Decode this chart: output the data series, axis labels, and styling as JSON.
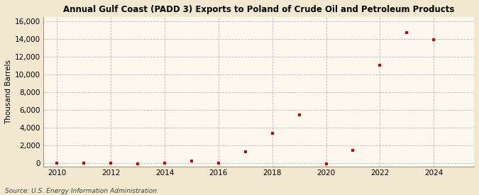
{
  "title": "Annual Gulf Coast (PADD 3) Exports to Poland of Crude Oil and Petroleum Products",
  "ylabel": "Thousand Barrels",
  "source": "Source: U.S. Energy Information Administration",
  "background_color": "#f2e8d0",
  "plot_background_color": "#fdf8ee",
  "marker_color": "#cc0000",
  "xlim": [
    2009.5,
    2025.5
  ],
  "ylim": [
    -400,
    16500
  ],
  "yticks": [
    0,
    2000,
    4000,
    6000,
    8000,
    10000,
    12000,
    14000,
    16000
  ],
  "ytick_labels": [
    "0",
    "2,000",
    "4,000",
    "6,000",
    "8,000",
    "10,000",
    "12,000",
    "14,000",
    "16,000"
  ],
  "xticks": [
    2010,
    2012,
    2014,
    2016,
    2018,
    2020,
    2022,
    2024
  ],
  "data": {
    "years": [
      2010,
      2011,
      2012,
      2013,
      2014,
      2015,
      2016,
      2017,
      2018,
      2019,
      2020,
      2021,
      2022,
      2023,
      2024
    ],
    "values": [
      0,
      -50,
      -50,
      -80,
      -50,
      180,
      -50,
      1250,
      3350,
      5450,
      -80,
      1400,
      11000,
      14700,
      13950
    ]
  }
}
